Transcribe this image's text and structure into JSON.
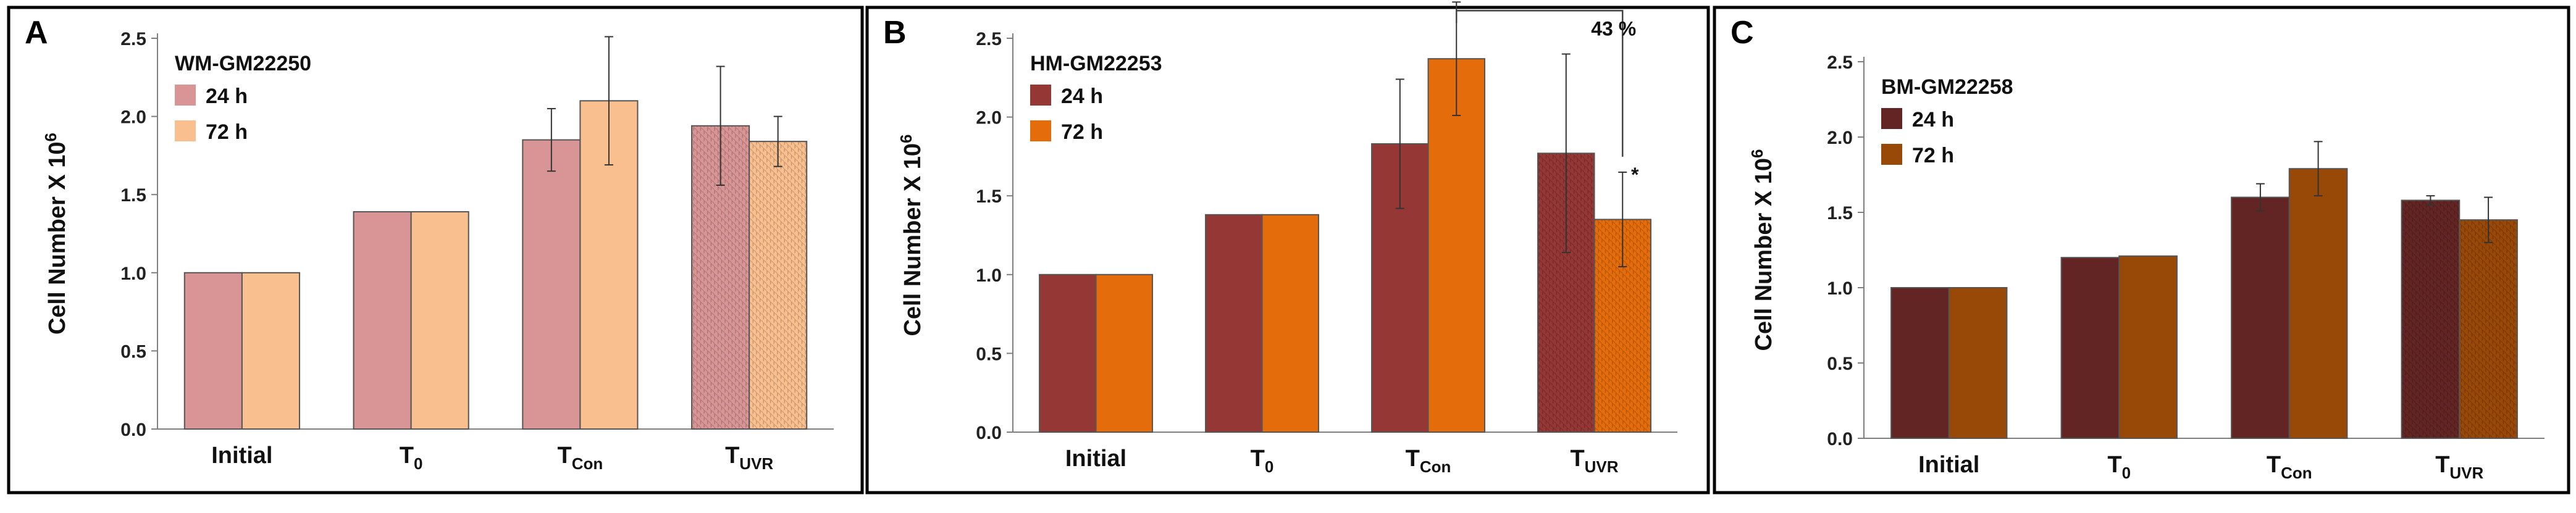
{
  "chart_data": [
    {
      "type": "bar",
      "panel": "A",
      "title": "WM-GM22250",
      "ylabel": "Cell Number X 10",
      "ylabel_sup": "6",
      "ylim": [
        0,
        2.5
      ],
      "yticks": [
        "0.0",
        "0.5",
        "1.0",
        "1.5",
        "2.0",
        "2.5"
      ],
      "categories": [
        {
          "base": "Initial",
          "sub": ""
        },
        {
          "base": "T",
          "sub": "0"
        },
        {
          "base": "T",
          "sub": "Con"
        },
        {
          "base": "T",
          "sub": "UVR"
        }
      ],
      "series": [
        {
          "name": "24 h",
          "color": "#d99595",
          "values": [
            1.0,
            1.39,
            1.85,
            1.94
          ],
          "errors": [
            0,
            0,
            0.2,
            0.38
          ]
        },
        {
          "name": "72 h",
          "color": "#f9bf8e",
          "values": [
            1.0,
            1.39,
            2.1,
            1.84
          ],
          "errors": [
            0,
            0,
            0.41,
            0.16
          ]
        }
      ],
      "hatched_category_index": 3,
      "legend": "top-left",
      "grid": false
    },
    {
      "type": "bar",
      "panel": "B",
      "title": "HM-GM22253",
      "ylabel": "Cell Number X 10",
      "ylabel_sup": "6",
      "ylim": [
        0,
        2.5
      ],
      "yticks": [
        "0.0",
        "0.5",
        "1.0",
        "1.5",
        "2.0",
        "2.5"
      ],
      "categories": [
        {
          "base": "Initial",
          "sub": ""
        },
        {
          "base": "T",
          "sub": "0"
        },
        {
          "base": "T",
          "sub": "Con"
        },
        {
          "base": "T",
          "sub": "UVR"
        }
      ],
      "series": [
        {
          "name": "24 h",
          "color": "#953735",
          "values": [
            1.0,
            1.38,
            1.83,
            1.77
          ],
          "errors": [
            0,
            0,
            0.41,
            0.63
          ]
        },
        {
          "name": "72 h",
          "color": "#e46c0a",
          "values": [
            1.0,
            1.38,
            2.37,
            1.35
          ],
          "errors": [
            0,
            0,
            0.36,
            0.3
          ]
        }
      ],
      "hatched_category_index": 3,
      "annotations": {
        "percent": "43 %",
        "significance": "*"
      },
      "legend": "top-left",
      "grid": false
    },
    {
      "type": "bar",
      "panel": "C",
      "title": "BM-GM22258",
      "ylabel": "Cell Number X 10",
      "ylabel_sup": "6",
      "ylim": [
        0,
        2.5
      ],
      "yticks": [
        "0.0",
        "0.5",
        "1.0",
        "1.5",
        "2.0",
        "2.5"
      ],
      "categories": [
        {
          "base": "Initial",
          "sub": ""
        },
        {
          "base": "T",
          "sub": "0"
        },
        {
          "base": "T",
          "sub": "Con"
        },
        {
          "base": "T",
          "sub": "UVR"
        }
      ],
      "series": [
        {
          "name": "24 h",
          "color": "#632523",
          "values": [
            1.0,
            1.2,
            1.6,
            1.58
          ],
          "errors": [
            0,
            0,
            0.09,
            0.03
          ]
        },
        {
          "name": "72 h",
          "color": "#984807",
          "values": [
            1.0,
            1.21,
            1.79,
            1.45
          ],
          "errors": [
            0,
            0,
            0.18,
            0.15
          ]
        }
      ],
      "hatched_category_index": 3,
      "legend": "top-left",
      "grid": false
    }
  ]
}
